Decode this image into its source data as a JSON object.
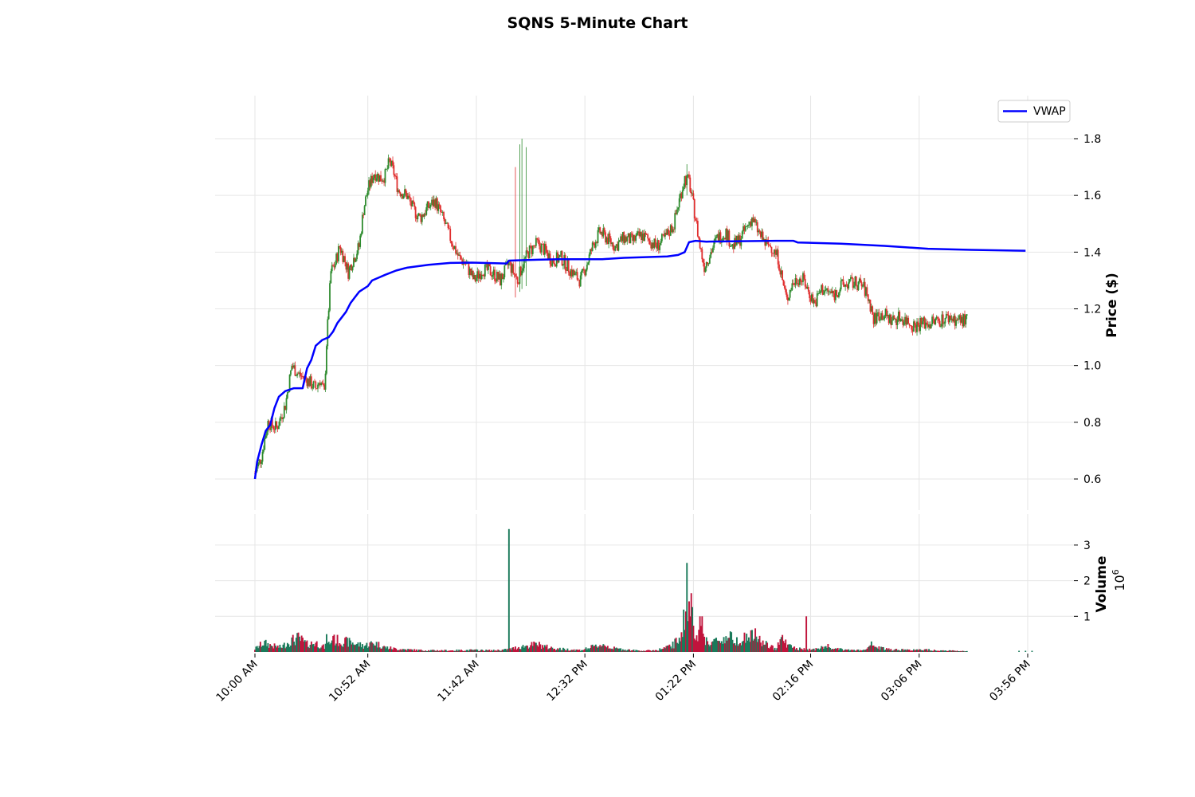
{
  "chart_data": {
    "type": "candlestick",
    "title": "SQNS 5-Minute Chart",
    "price_axis": {
      "label": "Price ($)",
      "ticks": [
        0.6,
        0.8,
        1.0,
        1.2,
        1.4,
        1.6,
        1.8
      ],
      "tick_labels": [
        "0.6",
        "0.8",
        "1.0",
        "1.2",
        "1.4",
        "1.6",
        "1.8"
      ],
      "ylim": [
        0.55,
        1.95
      ]
    },
    "volume_axis": {
      "label": "Volume",
      "multiplier_label": "10",
      "multiplier_exponent": "6",
      "ticks": [
        1,
        2,
        3
      ],
      "tick_labels": [
        "1",
        "2",
        "3"
      ],
      "ylim": [
        0,
        3.5
      ]
    },
    "x_axis": {
      "tick_labels": [
        "10:00 AM",
        "10:52 AM",
        "11:42 AM",
        "12:32 PM",
        "01:22 PM",
        "02:16 PM",
        "03:06 PM",
        "03:56 PM"
      ],
      "tick_minutes": [
        600,
        652,
        702,
        752,
        802,
        856,
        906,
        956
      ],
      "range_minutes": [
        600,
        960
      ],
      "grid": true
    },
    "legend": {
      "position": "upper-right",
      "entries": [
        {
          "name": "VWAP",
          "color": "#0000ff"
        }
      ]
    },
    "colors": {
      "up": "#2e8b2e",
      "down": "#e03030",
      "vwap": "#0000ff",
      "vol_up": "#1a7a5a",
      "vol_down": "#c0143c",
      "grid": "#e6e6e6"
    },
    "price_anchors": [
      [
        600,
        0.62
      ],
      [
        603,
        0.68
      ],
      [
        606,
        0.8
      ],
      [
        610,
        0.78
      ],
      [
        614,
        0.86
      ],
      [
        617,
        1.0
      ],
      [
        620,
        0.97
      ],
      [
        624,
        0.95
      ],
      [
        628,
        0.92
      ],
      [
        630,
        0.95
      ],
      [
        632,
        0.9
      ],
      [
        633,
        1.08
      ],
      [
        635,
        1.33
      ],
      [
        637,
        1.36
      ],
      [
        639,
        1.42
      ],
      [
        641,
        1.38
      ],
      [
        643,
        1.33
      ],
      [
        645,
        1.37
      ],
      [
        648,
        1.42
      ],
      [
        650,
        1.55
      ],
      [
        652,
        1.62
      ],
      [
        655,
        1.68
      ],
      [
        658,
        1.66
      ],
      [
        660,
        1.67
      ],
      [
        662,
        1.72
      ],
      [
        664,
        1.68
      ],
      [
        666,
        1.62
      ],
      [
        670,
        1.6
      ],
      [
        673,
        1.55
      ],
      [
        676,
        1.52
      ],
      [
        680,
        1.56
      ],
      [
        683,
        1.58
      ],
      [
        686,
        1.53
      ],
      [
        690,
        1.45
      ],
      [
        694,
        1.38
      ],
      [
        697,
        1.36
      ],
      [
        701,
        1.3
      ],
      [
        705,
        1.34
      ],
      [
        709,
        1.33
      ],
      [
        713,
        1.3
      ],
      [
        717,
        1.36
      ],
      [
        719,
        1.33
      ],
      [
        721,
        1.3
      ],
      [
        723,
        1.35
      ],
      [
        726,
        1.4
      ],
      [
        730,
        1.43
      ],
      [
        733,
        1.41
      ],
      [
        737,
        1.37
      ],
      [
        741,
        1.38
      ],
      [
        744,
        1.35
      ],
      [
        747,
        1.32
      ],
      [
        750,
        1.3
      ],
      [
        753,
        1.36
      ],
      [
        756,
        1.43
      ],
      [
        759,
        1.47
      ],
      [
        762,
        1.45
      ],
      [
        766,
        1.42
      ],
      [
        770,
        1.45
      ],
      [
        774,
        1.44
      ],
      [
        778,
        1.46
      ],
      [
        782,
        1.44
      ],
      [
        785,
        1.42
      ],
      [
        789,
        1.45
      ],
      [
        793,
        1.5
      ],
      [
        796,
        1.6
      ],
      [
        798,
        1.66
      ],
      [
        800,
        1.65
      ],
      [
        803,
        1.52
      ],
      [
        805,
        1.42
      ],
      [
        807,
        1.35
      ],
      [
        810,
        1.4
      ],
      [
        813,
        1.45
      ],
      [
        817,
        1.47
      ],
      [
        820,
        1.42
      ],
      [
        823,
        1.44
      ],
      [
        826,
        1.48
      ],
      [
        829,
        1.52
      ],
      [
        832,
        1.47
      ],
      [
        835,
        1.43
      ],
      [
        838,
        1.42
      ],
      [
        841,
        1.38
      ],
      [
        843,
        1.3
      ],
      [
        845,
        1.23
      ],
      [
        847,
        1.28
      ],
      [
        850,
        1.31
      ],
      [
        853,
        1.3
      ],
      [
        855,
        1.26
      ],
      [
        858,
        1.22
      ],
      [
        861,
        1.27
      ],
      [
        864,
        1.26
      ],
      [
        867,
        1.25
      ],
      [
        870,
        1.28
      ],
      [
        874,
        1.29
      ],
      [
        878,
        1.29
      ],
      [
        880,
        1.28
      ],
      [
        882,
        1.25
      ],
      [
        884,
        1.2
      ],
      [
        885,
        1.16
      ],
      [
        887,
        1.18
      ],
      [
        890,
        1.18
      ],
      [
        893,
        1.16
      ],
      [
        897,
        1.17
      ],
      [
        900,
        1.16
      ],
      [
        904,
        1.14
      ],
      [
        907,
        1.15
      ],
      [
        911,
        1.15
      ],
      [
        915,
        1.16
      ],
      [
        920,
        1.17
      ],
      [
        924,
        1.16
      ],
      [
        928,
        1.16
      ]
    ],
    "price_spikes": [
      [
        720,
        1.7,
        1.24
      ],
      [
        722,
        1.78,
        1.26
      ],
      [
        723,
        1.8,
        1.27
      ],
      [
        725,
        1.77,
        1.28
      ],
      [
        799,
        1.71,
        1.6
      ]
    ],
    "volume_anchors": [
      [
        600,
        0.1
      ],
      [
        604,
        0.3
      ],
      [
        608,
        0.2
      ],
      [
        612,
        0.15
      ],
      [
        616,
        0.35
      ],
      [
        620,
        0.45
      ],
      [
        624,
        0.25
      ],
      [
        628,
        0.3
      ],
      [
        632,
        0.15
      ],
      [
        636,
        0.4
      ],
      [
        640,
        0.35
      ],
      [
        645,
        0.3
      ],
      [
        650,
        0.2
      ],
      [
        655,
        0.3
      ],
      [
        660,
        0.15
      ],
      [
        665,
        0.1
      ],
      [
        670,
        0.08
      ],
      [
        675,
        0.06
      ],
      [
        680,
        0.05
      ],
      [
        690,
        0.05
      ],
      [
        700,
        0.06
      ],
      [
        710,
        0.05
      ],
      [
        715,
        0.07
      ],
      [
        718,
        0.1
      ],
      [
        721,
        0.15
      ],
      [
        725,
        0.2
      ],
      [
        730,
        0.25
      ],
      [
        735,
        0.15
      ],
      [
        740,
        0.1
      ],
      [
        745,
        0.08
      ],
      [
        750,
        0.06
      ],
      [
        755,
        0.15
      ],
      [
        758,
        0.2
      ],
      [
        760,
        0.25
      ],
      [
        765,
        0.12
      ],
      [
        770,
        0.08
      ],
      [
        775,
        0.05
      ],
      [
        780,
        0.04
      ],
      [
        785,
        0.06
      ],
      [
        790,
        0.15
      ],
      [
        793,
        0.25
      ],
      [
        795,
        0.4
      ],
      [
        798,
        1.1
      ],
      [
        800,
        1.4
      ],
      [
        802,
        0.9
      ],
      [
        805,
        0.6
      ],
      [
        808,
        0.4
      ],
      [
        810,
        0.3
      ],
      [
        815,
        0.4
      ],
      [
        818,
        0.5
      ],
      [
        822,
        0.4
      ],
      [
        826,
        0.45
      ],
      [
        830,
        0.55
      ],
      [
        834,
        0.3
      ],
      [
        838,
        0.15
      ],
      [
        840,
        0.12
      ],
      [
        842,
        0.5
      ],
      [
        846,
        0.2
      ],
      [
        850,
        0.1
      ],
      [
        855,
        0.08
      ],
      [
        860,
        0.1
      ],
      [
        863,
        0.2
      ],
      [
        867,
        0.1
      ],
      [
        870,
        0.08
      ],
      [
        875,
        0.06
      ],
      [
        880,
        0.05
      ],
      [
        882,
        0.08
      ],
      [
        884,
        0.25
      ],
      [
        886,
        0.15
      ],
      [
        890,
        0.1
      ],
      [
        895,
        0.08
      ],
      [
        900,
        0.07
      ],
      [
        905,
        0.06
      ],
      [
        910,
        0.08
      ],
      [
        915,
        0.05
      ],
      [
        920,
        0.04
      ],
      [
        925,
        0.03
      ],
      [
        928,
        0.02
      ]
    ],
    "volume_spikes": [
      [
        633,
        0.5
      ],
      [
        636,
        0.45
      ],
      [
        717,
        3.45
      ],
      [
        799,
        2.5
      ],
      [
        801,
        1.65
      ],
      [
        805,
        1.0
      ],
      [
        806,
        1.0
      ],
      [
        854,
        1.0
      ]
    ],
    "vwap": [
      [
        600,
        0.6
      ],
      [
        601,
        0.66
      ],
      [
        603,
        0.72
      ],
      [
        605,
        0.77
      ],
      [
        607,
        0.79
      ],
      [
        609,
        0.85
      ],
      [
        611,
        0.89
      ],
      [
        614,
        0.91
      ],
      [
        618,
        0.92
      ],
      [
        620,
        0.92
      ],
      [
        622,
        0.92
      ],
      [
        624,
        0.99
      ],
      [
        626,
        1.02
      ],
      [
        628,
        1.07
      ],
      [
        631,
        1.09
      ],
      [
        634,
        1.1
      ],
      [
        636,
        1.12
      ],
      [
        638,
        1.15
      ],
      [
        640,
        1.17
      ],
      [
        642,
        1.19
      ],
      [
        644,
        1.22
      ],
      [
        646,
        1.24
      ],
      [
        648,
        1.26
      ],
      [
        652,
        1.28
      ],
      [
        654,
        1.3
      ],
      [
        657,
        1.31
      ],
      [
        660,
        1.32
      ],
      [
        665,
        1.335
      ],
      [
        670,
        1.345
      ],
      [
        680,
        1.355
      ],
      [
        690,
        1.362
      ],
      [
        700,
        1.363
      ],
      [
        716,
        1.36
      ],
      [
        717,
        1.37
      ],
      [
        730,
        1.373
      ],
      [
        740,
        1.375
      ],
      [
        760,
        1.375
      ],
      [
        770,
        1.38
      ],
      [
        790,
        1.385
      ],
      [
        795,
        1.39
      ],
      [
        798,
        1.4
      ],
      [
        800,
        1.435
      ],
      [
        803,
        1.44
      ],
      [
        808,
        1.437
      ],
      [
        820,
        1.438
      ],
      [
        840,
        1.44
      ],
      [
        848,
        1.44
      ],
      [
        850,
        1.434
      ],
      [
        870,
        1.43
      ],
      [
        890,
        1.422
      ],
      [
        910,
        1.412
      ],
      [
        930,
        1.408
      ],
      [
        955,
        1.405
      ]
    ]
  }
}
